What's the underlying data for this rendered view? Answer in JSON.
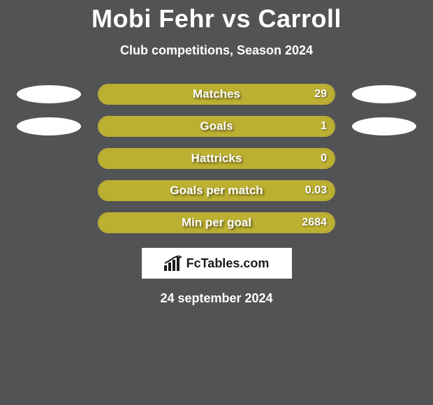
{
  "title": "Mobi Fehr vs Carroll",
  "subtitle": "Club competitions, Season 2024",
  "date_line": "24 september 2024",
  "logo_text": "FcTables.com",
  "colors": {
    "left": "#bcb032",
    "right": "#bcb032",
    "track_border": "#bcb032",
    "ellipse": "#ffffff",
    "background": "#525355",
    "text": "#ffffff"
  },
  "rows": [
    {
      "label": "Matches",
      "left_value": "",
      "right_value": "29",
      "left_pct": 0,
      "right_pct": 100,
      "show_left_ellipse": true,
      "show_right_ellipse": true
    },
    {
      "label": "Goals",
      "left_value": "",
      "right_value": "1",
      "left_pct": 0,
      "right_pct": 100,
      "show_left_ellipse": true,
      "show_right_ellipse": true
    },
    {
      "label": "Hattricks",
      "left_value": "",
      "right_value": "0",
      "left_pct": 0,
      "right_pct": 100,
      "show_left_ellipse": false,
      "show_right_ellipse": false
    },
    {
      "label": "Goals per match",
      "left_value": "",
      "right_value": "0.03",
      "left_pct": 0,
      "right_pct": 100,
      "show_left_ellipse": false,
      "show_right_ellipse": false
    },
    {
      "label": "Min per goal",
      "left_value": "",
      "right_value": "2684",
      "left_pct": 0,
      "right_pct": 100,
      "show_left_ellipse": false,
      "show_right_ellipse": false
    }
  ]
}
